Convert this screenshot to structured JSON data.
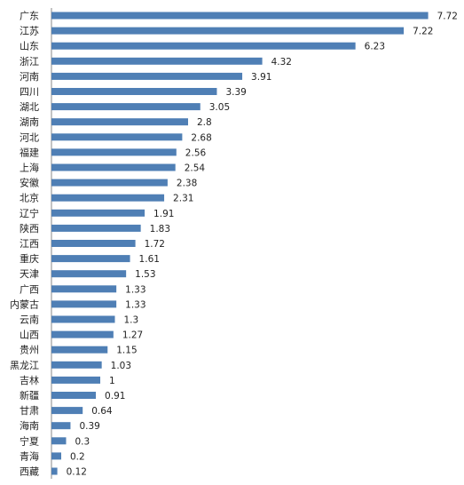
{
  "chart_data": {
    "type": "bar",
    "orientation": "horizontal",
    "title": "",
    "xlabel": "",
    "ylabel": "",
    "grid": false,
    "legend": "none",
    "bar_color": "#4f7fb5",
    "axis_color": "#888888",
    "xlim": [
      0,
      8
    ],
    "categories": [
      "广东",
      "江苏",
      "山东",
      "浙江",
      "河南",
      "四川",
      "湖北",
      "湖南",
      "河北",
      "福建",
      "上海",
      "安徽",
      "北京",
      "辽宁",
      "陕西",
      "江西",
      "重庆",
      "天津",
      "广西",
      "内蒙古",
      "云南",
      "山西",
      "贵州",
      "黑龙江",
      "吉林",
      "新疆",
      "甘肃",
      "海南",
      "宁夏",
      "青海",
      "西藏"
    ],
    "values": [
      7.72,
      7.22,
      6.23,
      4.32,
      3.91,
      3.39,
      3.05,
      2.8,
      2.68,
      2.56,
      2.54,
      2.38,
      2.31,
      1.91,
      1.83,
      1.72,
      1.61,
      1.53,
      1.33,
      1.33,
      1.3,
      1.27,
      1.15,
      1.03,
      1,
      0.91,
      0.64,
      0.39,
      0.3,
      0.2,
      0.12
    ],
    "value_labels": [
      "7.72",
      "7.22",
      "6.23",
      "4.32",
      "3.91",
      "3.39",
      "3.05",
      "2.8",
      "2.68",
      "2.56",
      "2.54",
      "2.38",
      "2.31",
      "1.91",
      "1.83",
      "1.72",
      "1.61",
      "1.53",
      "1.33",
      "1.33",
      "1.3",
      "1.27",
      "1.15",
      "1.03",
      "1",
      "0.91",
      "0.64",
      "0.39",
      "0.3",
      "0.2",
      "0.12"
    ]
  }
}
